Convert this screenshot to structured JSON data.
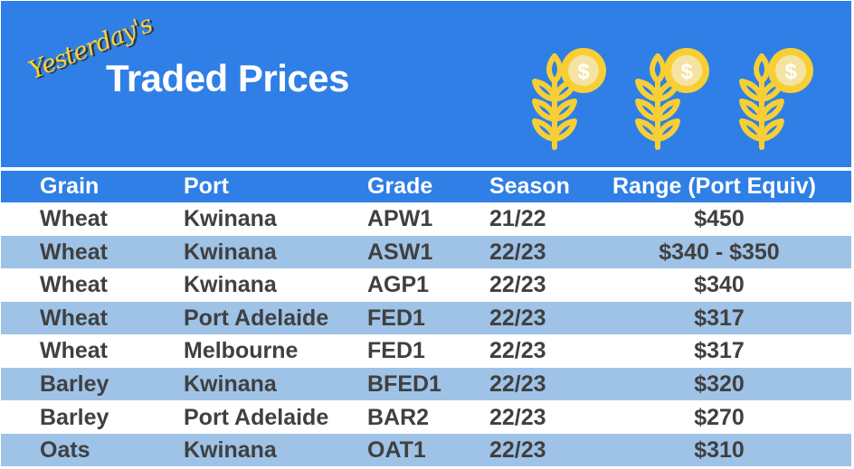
{
  "banner": {
    "script_title": "Yesterday's",
    "title": "Traded Prices",
    "icons": [
      "wheat-coin-icon",
      "wheat-coin-icon",
      "wheat-coin-icon"
    ],
    "colors": {
      "background": "#2f7fe6",
      "wheat": "#f7cf35",
      "coin": "#f5e3a3"
    }
  },
  "table": {
    "headers": [
      "Grain",
      "Port",
      "Grade",
      "Season",
      "Range (Port Equiv)"
    ],
    "rows": [
      [
        "Wheat",
        "Kwinana",
        "APW1",
        "21/22",
        "$450"
      ],
      [
        "Wheat",
        "Kwinana",
        "ASW1",
        "22/23",
        "$340 - $350"
      ],
      [
        "Wheat",
        "Kwinana",
        "AGP1",
        "22/23",
        "$340"
      ],
      [
        "Wheat",
        "Port Adelaide",
        "FED1",
        "22/23",
        "$317"
      ],
      [
        "Wheat",
        "Melbourne",
        "FED1",
        "22/23",
        "$317"
      ],
      [
        "Barley",
        "Kwinana",
        "BFED1",
        "22/23",
        "$320"
      ],
      [
        "Barley",
        "Port Adelaide",
        "BAR2",
        "22/23",
        "$270"
      ],
      [
        "Oats",
        "Kwinana",
        "OAT1",
        "22/23",
        "$310"
      ]
    ]
  }
}
